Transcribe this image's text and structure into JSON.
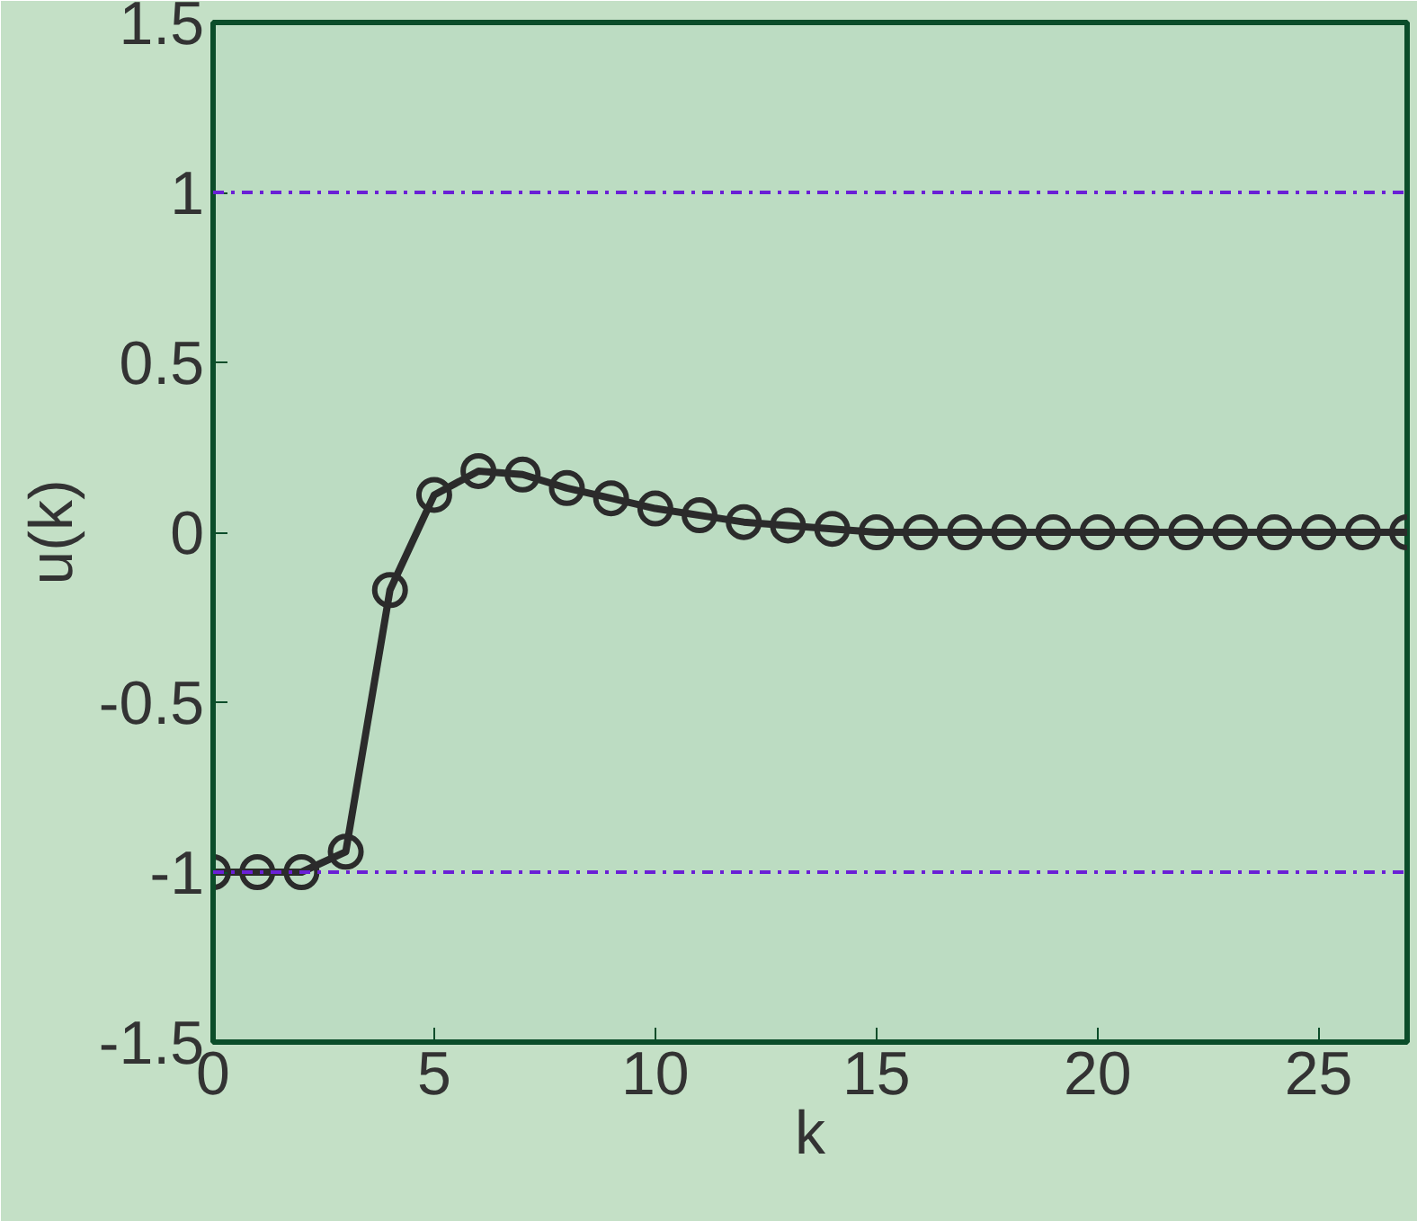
{
  "chart_data": {
    "type": "line",
    "xlabel": "k",
    "ylabel": "u(k)",
    "x": [
      0,
      1,
      2,
      3,
      4,
      5,
      6,
      7,
      8,
      9,
      10,
      11,
      12,
      13,
      14,
      15,
      16,
      17,
      18,
      19,
      20,
      21,
      22,
      23,
      24,
      25,
      26,
      27
    ],
    "series": [
      {
        "color": "#2b2b2b",
        "values": [
          -1,
          -1,
          -1,
          -0.94,
          -0.17,
          0.11,
          0.18,
          0.17,
          0.13,
          0.1,
          0.07,
          0.05,
          0.03,
          0.02,
          0.01,
          0,
          0,
          0,
          0,
          0,
          0,
          0,
          0,
          0,
          0,
          0,
          0,
          0
        ]
      }
    ],
    "xlim": [
      0,
      27
    ],
    "xticks": [
      0,
      5,
      10,
      15,
      20,
      25
    ],
    "ylim": [
      -1.5,
      1.5
    ],
    "yticks": [
      -1.5,
      -1,
      -0.5,
      0,
      0.5,
      1,
      1.5
    ],
    "ref_lines": [
      {
        "axis": "y",
        "value": 1,
        "color": "#6a1fd6",
        "line_style": "dashdot"
      },
      {
        "axis": "y",
        "value": -1,
        "color": "#6a1fd6",
        "line_style": "dashdot"
      }
    ],
    "grid": false,
    "marker": "circle",
    "line_style": "solid"
  }
}
